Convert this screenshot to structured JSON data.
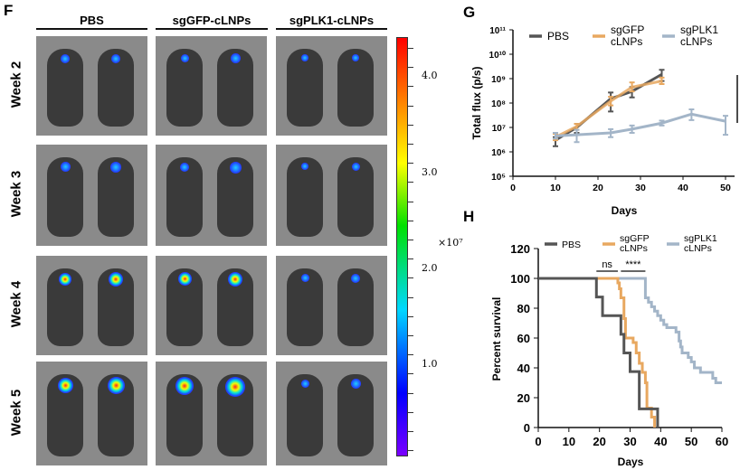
{
  "panel_f": {
    "letter": "F",
    "groups": [
      "PBS",
      "sgGFP-cLNPs",
      "sgPLK1-cLNPs"
    ],
    "weeks": [
      "Week 2",
      "Week 3",
      "Week 4",
      "Week 5"
    ],
    "colorbar": {
      "ticks": [
        "1.0",
        "2.0",
        "3.0",
        "4.0"
      ],
      "unit": "×10⁷",
      "colormap": "rainbow (violet to red)"
    }
  },
  "chart_data": [
    {
      "type": "line",
      "panel": "G",
      "xlabel": "Days",
      "ylabel": "Total flux (p/s)",
      "xlim": [
        0,
        50
      ],
      "xticks": [
        "0",
        "10",
        "20",
        "30",
        "40",
        "50"
      ],
      "yscale": "log",
      "ylim": [
        100000,
        100000000000
      ],
      "yticks": [
        "10⁵",
        "10⁶",
        "10⁷",
        "10⁸",
        "10⁹",
        "10¹⁰",
        "10¹¹"
      ],
      "legend": "top",
      "series": [
        {
          "name": "PBS",
          "color": "#555555",
          "x": [
            10,
            15,
            23,
            28,
            35
          ],
          "y": [
            3000000,
            10000000,
            150000000,
            300000000,
            1500000000
          ],
          "err_lo": [
            1700000,
            6000000,
            45000000,
            170000000,
            800000000
          ],
          "err_hi": [
            4000000,
            14000000,
            270000000,
            450000000,
            2300000000
          ]
        },
        {
          "name": "sgGFP cLNPs",
          "color": "#e8a860",
          "x": [
            10,
            15,
            23,
            28,
            35
          ],
          "y": [
            4000000,
            11000000,
            120000000,
            450000000,
            800000000
          ],
          "err_lo": [
            3000000,
            8000000,
            80000000,
            300000000,
            600000000
          ],
          "err_hi": [
            5500000,
            14000000,
            180000000,
            700000000,
            1100000000
          ]
        },
        {
          "name": "sgPLK1 cLNPs",
          "color": "#a3b5c8",
          "x": [
            10,
            15,
            23,
            28,
            35,
            42,
            50
          ],
          "y": [
            4500000,
            5000000,
            6000000,
            8500000,
            15000000,
            35000000,
            18000000
          ],
          "err_lo": [
            3500000,
            2500000,
            4000000,
            6000000,
            12000000,
            20000000,
            5000000
          ],
          "err_hi": [
            6000000,
            8000000,
            8500000,
            12000000,
            19000000,
            55000000,
            30000000
          ]
        }
      ]
    },
    {
      "type": "line",
      "panel": "H",
      "xlabel": "Days",
      "ylabel": "Percent survival",
      "xlim": [
        0,
        60
      ],
      "xticks": [
        "0",
        "10",
        "20",
        "30",
        "40",
        "50",
        "60"
      ],
      "ylim": [
        0,
        120
      ],
      "yticks": [
        "0",
        "20",
        "40",
        "60",
        "80",
        "100",
        "120"
      ],
      "legend": "top",
      "annotations": [
        {
          "text": "ns",
          "x": [
            19,
            26
          ]
        },
        {
          "text": "****",
          "x": [
            27,
            35
          ]
        }
      ],
      "series": [
        {
          "name": "PBS",
          "color": "#555555",
          "x": [
            0,
            19,
            21,
            27,
            28,
            30,
            33,
            39
          ],
          "y": [
            100,
            87.5,
            75,
            62.5,
            50,
            37.5,
            12.5,
            0
          ]
        },
        {
          "name": "sgGFP cLNPs",
          "color": "#e8a860",
          "x": [
            0,
            26,
            26.5,
            27,
            28,
            28.5,
            31,
            32,
            33,
            34,
            35,
            35.5,
            37,
            38
          ],
          "y": [
            100,
            97,
            93,
            87,
            73,
            60,
            57,
            50,
            43,
            37,
            30,
            13,
            7,
            0
          ]
        },
        {
          "name": "sgPLK1 cLNPs",
          "color": "#a3b5c8",
          "x": [
            0,
            35,
            36,
            37,
            38,
            39,
            40,
            41,
            42,
            45,
            46,
            46.5,
            47,
            49,
            50,
            51,
            53,
            57,
            58,
            60
          ],
          "y": [
            100,
            87,
            84,
            81,
            78,
            75,
            72,
            69,
            67,
            64,
            58,
            54,
            50,
            47,
            44,
            40,
            37,
            33,
            30,
            30
          ]
        }
      ]
    }
  ],
  "panel_g": {
    "letter": "G"
  },
  "panel_h": {
    "letter": "H"
  }
}
